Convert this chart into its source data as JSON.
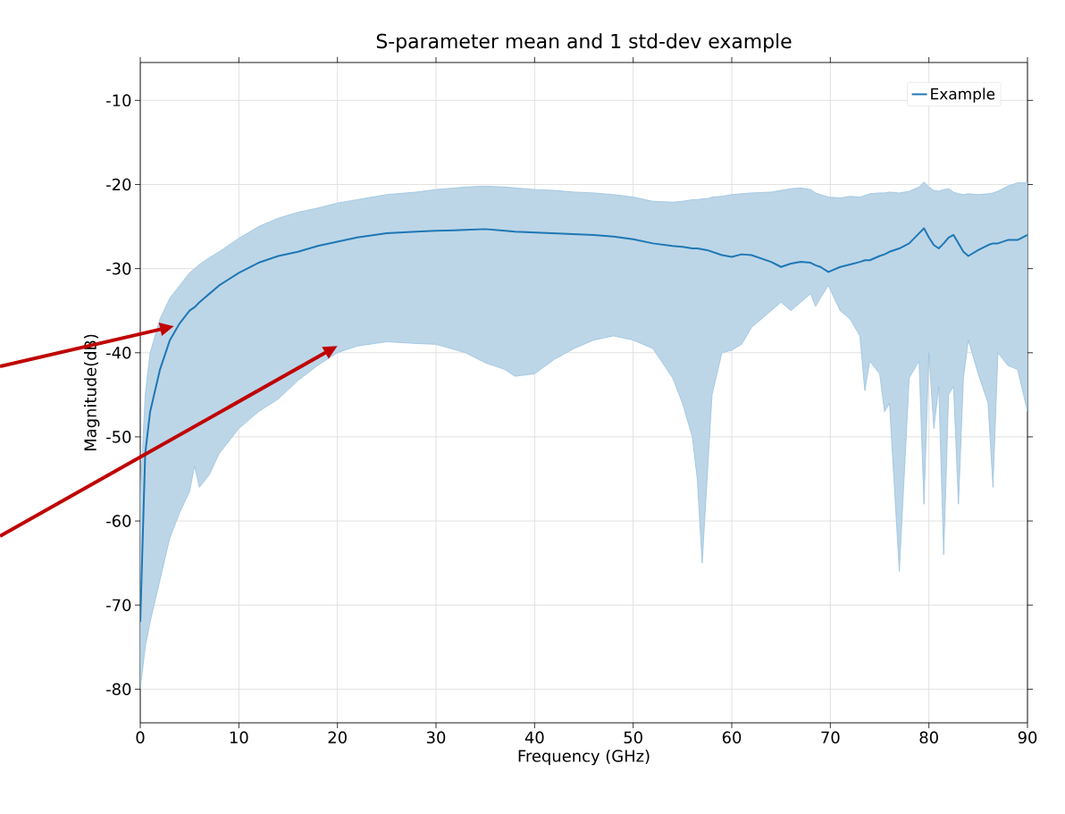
{
  "chart_data": {
    "type": "line",
    "title": "S-parameter mean and 1 std-dev example",
    "xlabel": "Frequency (GHz)",
    "ylabel": "Magnitude(dB)",
    "xlim": [
      0,
      90
    ],
    "xticks": [
      0,
      10,
      20,
      30,
      40,
      50,
      60,
      70,
      80,
      90
    ],
    "ylim": [
      -84,
      -5.5
    ],
    "yticks": [
      -80,
      -70,
      -60,
      -50,
      -40,
      -30,
      -20,
      -10
    ],
    "grid": true,
    "legend": "top right",
    "series": [
      {
        "name": "Example",
        "color": "#1f77b4",
        "x": [
          0,
          0.5,
          1,
          2,
          3,
          4,
          5,
          5.5,
          6,
          7,
          8,
          10,
          12,
          14,
          16,
          18,
          20,
          22,
          25,
          28,
          30,
          33,
          35,
          37,
          38,
          40,
          42,
          44,
          46,
          48,
          50,
          52,
          54,
          55,
          56,
          56.5,
          57,
          57.5,
          58,
          59,
          60,
          61,
          62,
          64,
          65,
          66,
          67,
          68,
          68.5,
          69,
          69.8,
          71,
          72,
          73,
          73.5,
          74,
          75,
          75.5,
          76,
          77,
          78,
          79,
          79.5,
          80,
          80.5,
          81,
          81.5,
          82,
          82.5,
          83,
          83.5,
          84,
          85,
          86,
          86.5,
          87,
          88,
          89,
          90
        ],
        "values": [
          -72,
          -52,
          -47,
          -42,
          -38.5,
          -36.5,
          -35,
          -34.6,
          -34,
          -33,
          -32,
          -30.5,
          -29.3,
          -28.5,
          -28,
          -27.3,
          -26.8,
          -26.3,
          -25.8,
          -25.6,
          -25.5,
          -25.4,
          -25.3,
          -25.5,
          -25.6,
          -25.7,
          -25.8,
          -25.9,
          -26,
          -26.2,
          -26.5,
          -27,
          -27.3,
          -27.4,
          -27.6,
          -27.6,
          -27.7,
          -27.8,
          -28,
          -28.4,
          -28.6,
          -28.3,
          -28.4,
          -29.2,
          -29.8,
          -29.4,
          -29.2,
          -29.3,
          -29.6,
          -29.8,
          -30.4,
          -29.8,
          -29.5,
          -29.2,
          -29,
          -29,
          -28.5,
          -28.3,
          -28,
          -27.6,
          -27,
          -25.8,
          -25.2,
          -26.3,
          -27.2,
          -27.6,
          -27,
          -26.3,
          -26,
          -27,
          -28,
          -28.5,
          -27.8,
          -27.2,
          -27,
          -27,
          -26.6,
          -26.6,
          -26
        ],
        "lower": [
          -80,
          -75,
          -72,
          -67,
          -62,
          -59,
          -56.5,
          -53.5,
          -56,
          -54.5,
          -52,
          -49,
          -47,
          -45.5,
          -43.3,
          -41.5,
          -40,
          -39.2,
          -38.7,
          -38.9,
          -39,
          -40,
          -41.2,
          -42,
          -42.8,
          -42.5,
          -40.8,
          -39.5,
          -38.5,
          -38,
          -38.5,
          -39.5,
          -43,
          -46,
          -50,
          -55,
          -65,
          -55,
          -45,
          -40,
          -39.7,
          -39,
          -37,
          -35,
          -34,
          -35,
          -34,
          -33,
          -34.5,
          -33.5,
          -32,
          -35,
          -36,
          -38,
          -44.5,
          -41,
          -42.5,
          -47,
          -46,
          -66,
          -43,
          -41,
          -58,
          -40,
          -49,
          -44,
          -64,
          -45,
          -44,
          -58,
          -43,
          -38.5,
          -42.5,
          -46,
          -56,
          -40,
          -41.5,
          -42,
          -47
        ],
        "upper": [
          -57,
          -45,
          -40,
          -36,
          -33.5,
          -32,
          -30.5,
          -30,
          -29.5,
          -28.7,
          -28,
          -26.4,
          -25,
          -24,
          -23.3,
          -22.8,
          -22.2,
          -21.8,
          -21.2,
          -20.9,
          -20.6,
          -20.3,
          -20.2,
          -20.3,
          -20.4,
          -20.6,
          -20.7,
          -20.9,
          -21,
          -21.2,
          -21.5,
          -22,
          -22.1,
          -22,
          -21.8,
          -21.8,
          -21.7,
          -21.7,
          -21.5,
          -21.4,
          -21.2,
          -21.1,
          -21,
          -20.9,
          -20.7,
          -20.5,
          -20.4,
          -20.6,
          -21,
          -21.2,
          -21.5,
          -21.6,
          -21.4,
          -21.5,
          -21.3,
          -21.1,
          -21,
          -21,
          -20.9,
          -21,
          -20.8,
          -20.3,
          -19.7,
          -20.3,
          -20.7,
          -20.8,
          -20.6,
          -20.5,
          -20.9,
          -21.1,
          -21.2,
          -21.1,
          -21.2,
          -21.1,
          -21,
          -20.8,
          -20.2,
          -19.8,
          -19.8
        ]
      }
    ]
  }
}
